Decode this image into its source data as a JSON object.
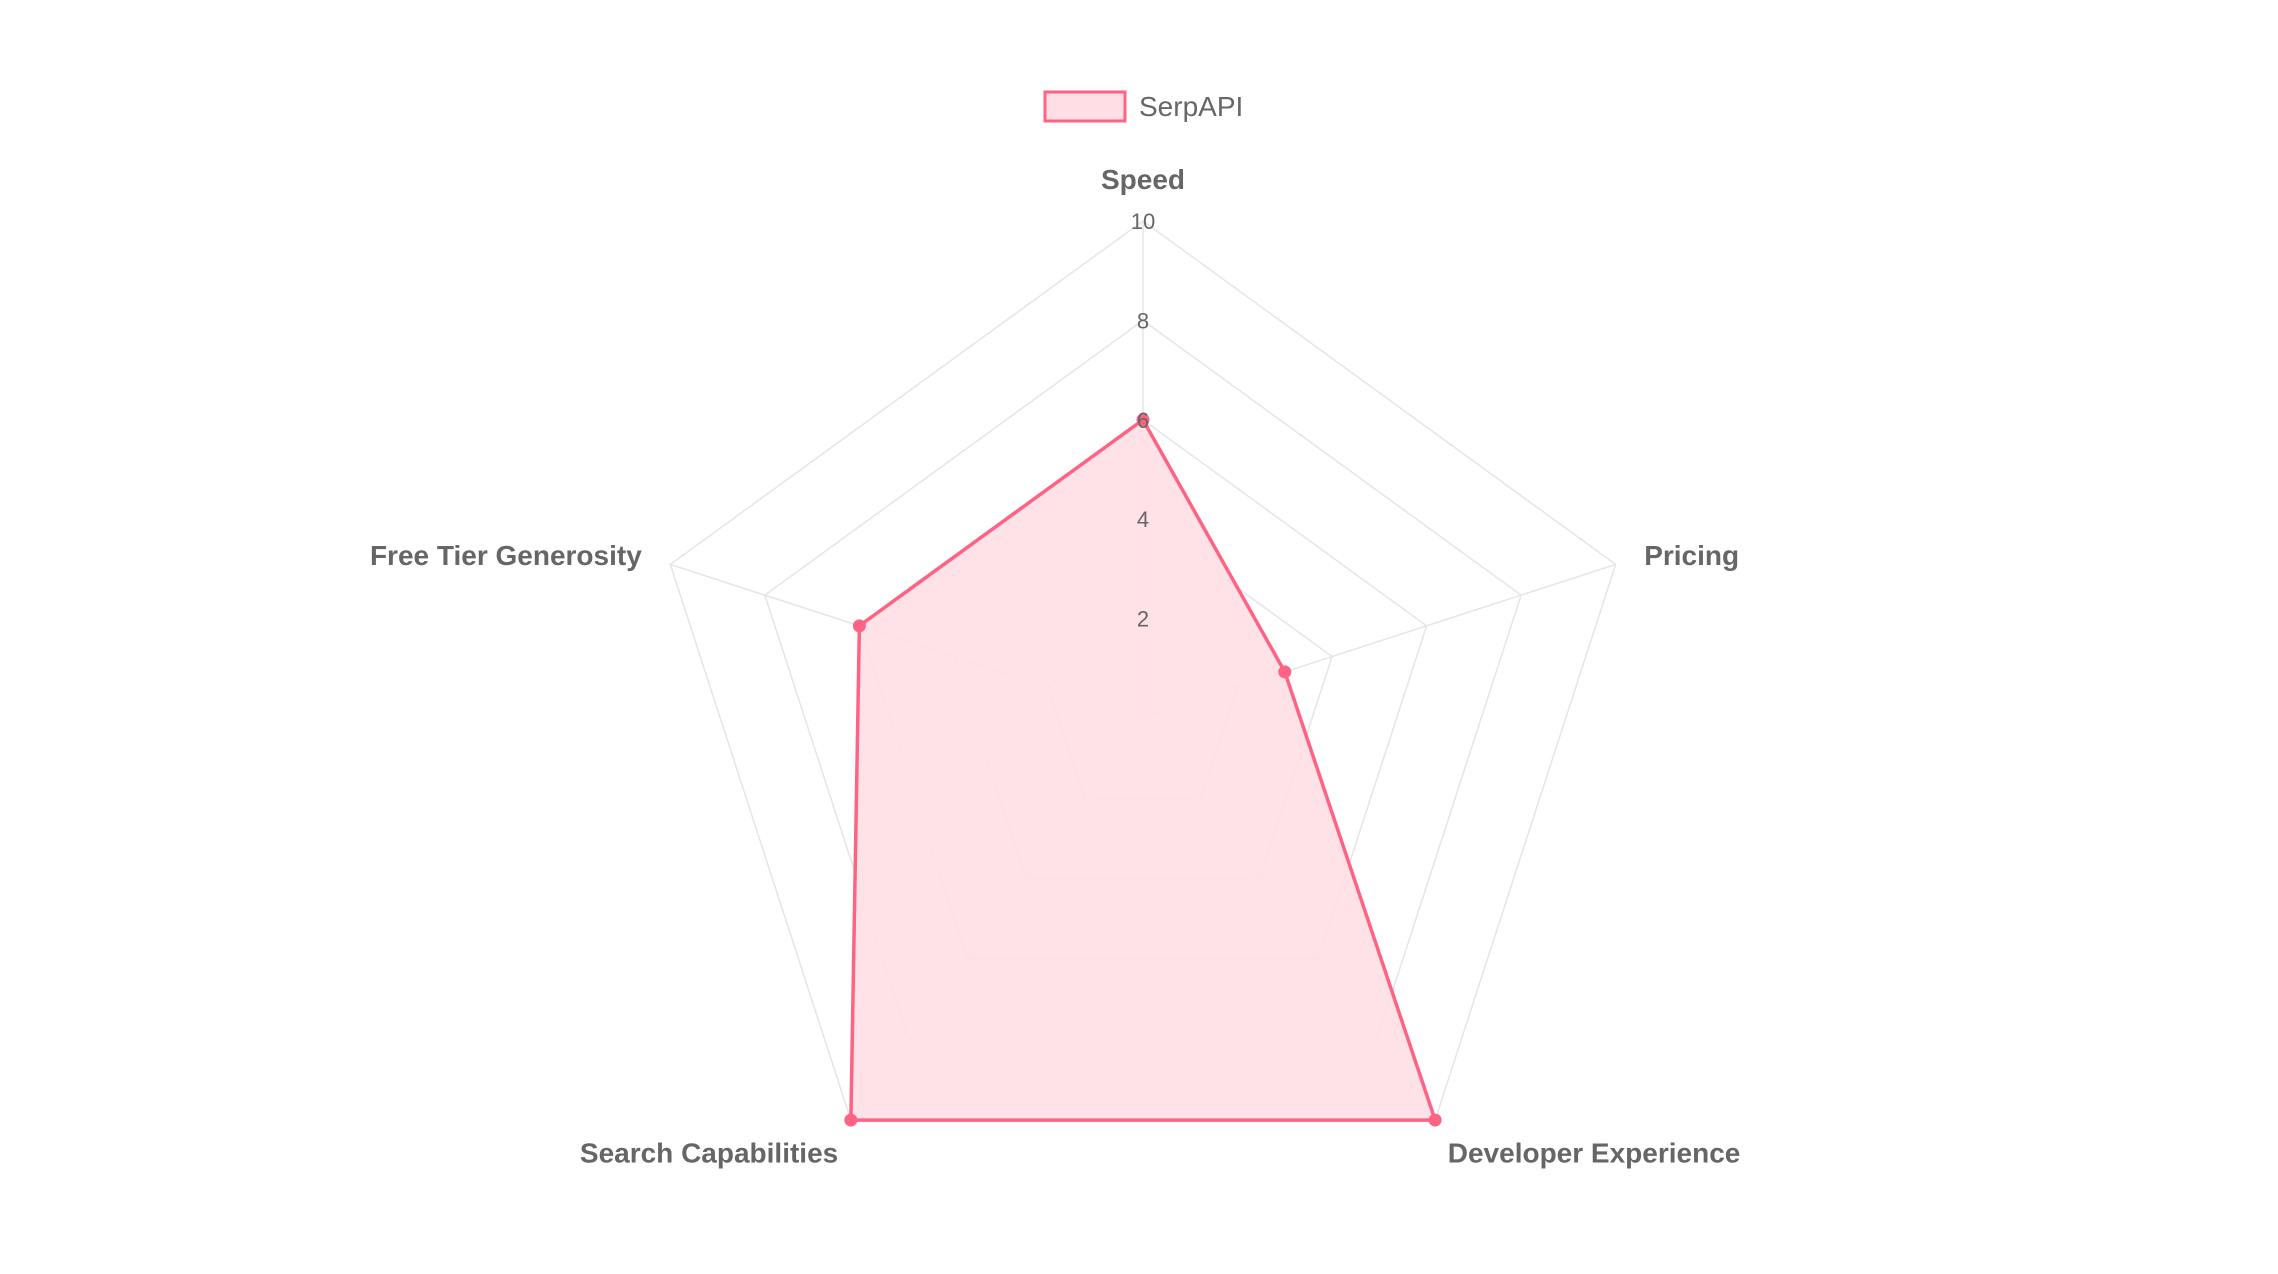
{
  "chart_data": {
    "type": "radar",
    "axes": [
      "Speed",
      "Pricing",
      "Developer Experience",
      "Search Capabilities",
      "Free Tier Generosity"
    ],
    "series": [
      {
        "name": "SerpAPI",
        "values": [
          6,
          3,
          10,
          10,
          6
        ],
        "line_color": "#ff6384",
        "fill_color": "#ffdfe5"
      }
    ],
    "r_range": [
      0,
      10
    ],
    "r_ticks": [
      2,
      4,
      6,
      8,
      10
    ],
    "grid": true,
    "grid_color": "#e5e5e5",
    "legend": "top-center"
  }
}
